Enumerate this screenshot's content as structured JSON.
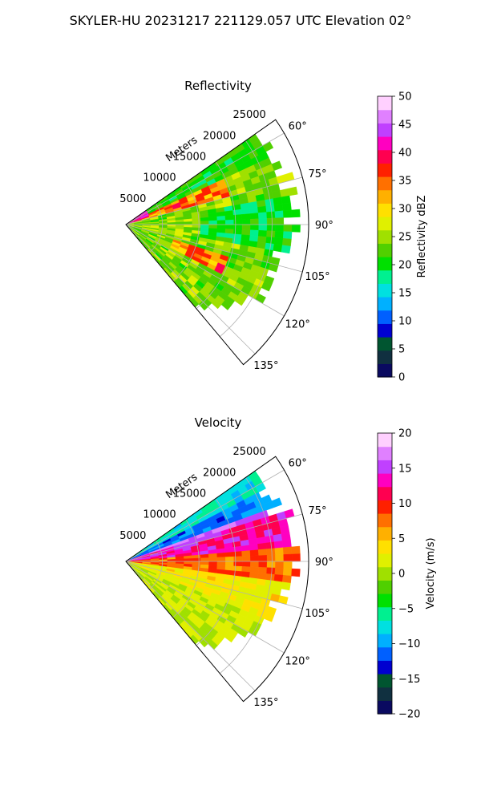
{
  "figure_title": "SKYLER-HU  20231217  221129.057 UTC Elevation 02°",
  "colors": {
    "grid": "#b0b0b0",
    "axis": "#000000",
    "background": "#ffffff"
  },
  "chart_data": [
    {
      "type": "heatmap",
      "subtype": "polar-sector (PPI radar scan)",
      "title": "Reflectivity",
      "radial_label": "Meters",
      "radial_ticks": [
        "5000",
        "10000",
        "15000",
        "20000",
        "25000"
      ],
      "radial_tick_values": [
        5000,
        10000,
        15000,
        20000,
        25000
      ],
      "rmax": 25000,
      "angle_ticks": [
        "60°",
        "75°",
        "90°",
        "105°",
        "120°",
        "135°"
      ],
      "angle_tick_values": [
        60,
        75,
        90,
        105,
        120,
        135
      ],
      "theta_range": [
        55,
        140
      ],
      "colorbar": {
        "label": "Reflectivity dBZ",
        "range": [
          0,
          50
        ],
        "ticks": [
          "0",
          "5",
          "10",
          "15",
          "20",
          "25",
          "30",
          "35",
          "40",
          "45",
          "50"
        ],
        "tick_values": [
          0,
          5,
          10,
          15,
          20,
          25,
          30,
          35,
          40,
          45,
          50
        ],
        "colors": [
          "#0a0a60",
          "#103040",
          "#005530",
          "#0000d0",
          "#0060ff",
          "#00b0ff",
          "#00e0e0",
          "#00f090",
          "#00e000",
          "#50d000",
          "#a0e000",
          "#e0f000",
          "#ffe000",
          "#ffb000",
          "#ff7000",
          "#ff2000",
          "#ff0050",
          "#ff00c0",
          "#c040ff",
          "#e080ff",
          "#ffd0ff"
        ]
      },
      "description_levels": "dominant values 20–30 dBZ (green/yellow), bands of 35–40 dBZ near 70° and 110°"
    },
    {
      "type": "heatmap",
      "subtype": "polar-sector (PPI radar scan)",
      "title": "Velocity",
      "radial_label": "Meters",
      "radial_ticks": [
        "5000",
        "10000",
        "15000",
        "20000",
        "25000"
      ],
      "radial_tick_values": [
        5000,
        10000,
        15000,
        20000,
        25000
      ],
      "rmax": 25000,
      "angle_ticks": [
        "60°",
        "75°",
        "90°",
        "105°",
        "120°",
        "135°"
      ],
      "angle_tick_values": [
        60,
        75,
        90,
        105,
        120,
        135
      ],
      "theta_range": [
        55,
        140
      ],
      "colorbar": {
        "label": "Velocity (m/s)",
        "range": [
          -20,
          20
        ],
        "ticks": [
          "−20",
          "−15",
          "−10",
          "−5",
          "0",
          "5",
          "10",
          "15",
          "20"
        ],
        "tick_values": [
          -20,
          -15,
          -10,
          -5,
          0,
          5,
          10,
          15,
          20
        ],
        "colors": [
          "#0a0a60",
          "#103040",
          "#005530",
          "#0000d0",
          "#0060ff",
          "#00b0ff",
          "#00e0e0",
          "#00f090",
          "#00e000",
          "#50d000",
          "#a0e000",
          "#e0f000",
          "#ffe000",
          "#ffb000",
          "#ff7000",
          "#ff2000",
          "#ff0050",
          "#ff00c0",
          "#c040ff",
          "#e080ff",
          "#ffd0ff"
        ]
      },
      "description_levels": "−10 to −5 m/s near 60–70°, 10–15 m/s near 75–85°, 5–10 m/s near 90°, 0–5 m/s from 100° to 135°"
    }
  ]
}
